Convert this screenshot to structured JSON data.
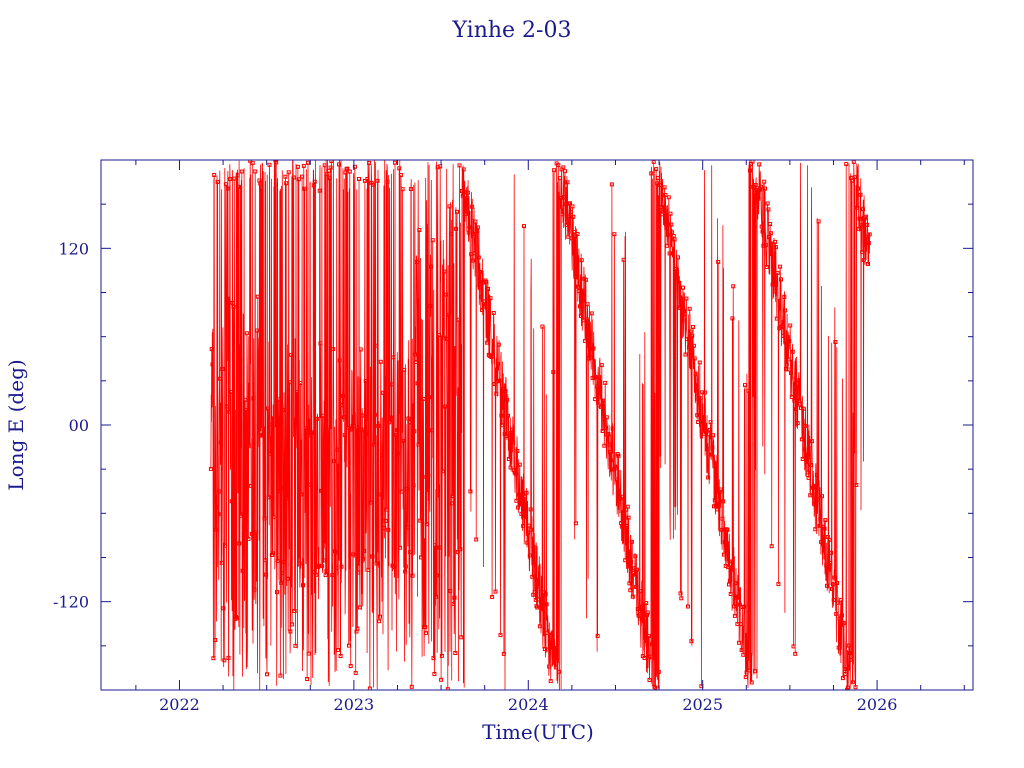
{
  "chart_data": {
    "type": "line",
    "title": "Yinhe 2-03",
    "xlabel": "Time(UTC)",
    "ylabel": "Long E (deg)",
    "xlim": [
      2021.55,
      2026.55
    ],
    "ylim": [
      -180,
      180
    ],
    "x_ticks": [
      2022,
      2023,
      2024,
      2025,
      2026
    ],
    "x_tick_labels": [
      "2022",
      "2023",
      "2024",
      "2025",
      "2026"
    ],
    "y_ticks": [
      -120,
      0,
      120
    ],
    "y_tick_labels": [
      "-120",
      "00",
      "120"
    ],
    "grid": false,
    "series_color": "#ff0000",
    "axis_color": "#1a1a8c",
    "data_range": {
      "start": 2022.18,
      "end": 2025.96
    },
    "segments": [
      {
        "from": 2022.18,
        "to": 2022.45,
        "pattern": "dense oscillation",
        "center": -40,
        "amplitude": 140
      },
      {
        "from": 2022.45,
        "to": 2023.35,
        "pattern": "scattered with flat bands near +170, 0 and -90",
        "center": -50,
        "amplitude": 130
      },
      {
        "from": 2023.35,
        "to": 2023.62,
        "pattern": "fully filled wrap-around band",
        "center": 0,
        "amplitude": 180
      },
      {
        "from": 2023.62,
        "to": 2025.96,
        "pattern": "westward drift with wrap-around stripes",
        "drift_rate_deg_per_year": -640
      }
    ],
    "flat_bands": [
      {
        "from": 2022.2,
        "to": 2023.4,
        "value": 170
      },
      {
        "from": 2022.2,
        "to": 2023.35,
        "value": 0
      },
      {
        "from": 2022.5,
        "to": 2023.35,
        "value": -95
      }
    ]
  }
}
